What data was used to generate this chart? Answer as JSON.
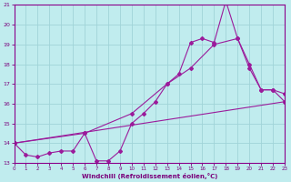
{
  "xlabel": "Windchill (Refroidissement éolien,°C)",
  "background_color": "#c0ecee",
  "grid_color": "#a0d4d8",
  "line_color": "#9b1b9b",
  "xlim": [
    0,
    23
  ],
  "ylim": [
    13,
    21
  ],
  "xticks": [
    0,
    1,
    2,
    3,
    4,
    5,
    6,
    7,
    8,
    9,
    10,
    11,
    12,
    13,
    14,
    15,
    16,
    17,
    18,
    19,
    20,
    21,
    22,
    23
  ],
  "yticks": [
    13,
    14,
    15,
    16,
    17,
    18,
    19,
    20,
    21
  ],
  "series1": [
    14.0,
    13.4,
    13.3,
    13.5,
    13.6,
    13.6,
    14.5,
    13.1,
    13.1,
    13.6,
    15.0,
    15.5,
    16.1,
    17.0,
    17.5,
    19.1,
    19.3,
    19.1,
    21.2,
    19.3,
    17.8,
    16.7,
    16.7,
    16.1
  ],
  "series2_x": [
    0,
    6,
    10,
    13,
    15,
    17,
    19,
    20,
    21,
    22,
    23
  ],
  "series2_y": [
    14.0,
    14.5,
    15.5,
    17.0,
    17.8,
    19.0,
    19.3,
    18.0,
    16.7,
    16.7,
    16.5
  ],
  "series3_x": [
    0,
    23
  ],
  "series3_y": [
    14.0,
    16.1
  ]
}
